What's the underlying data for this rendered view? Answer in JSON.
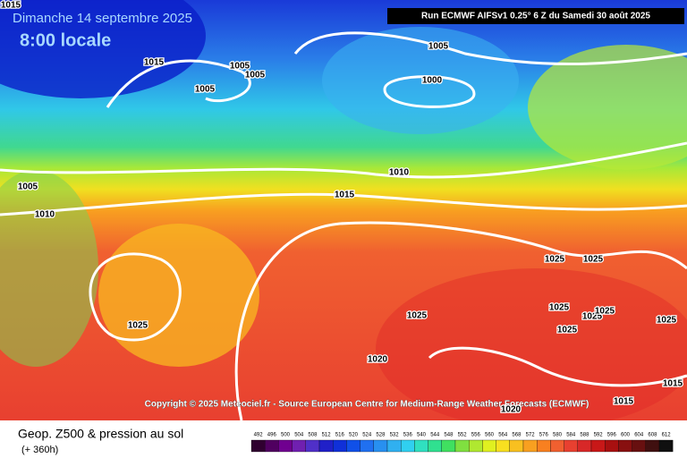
{
  "header": {
    "date": "Dimanche 14 septembre 2025",
    "time": "8:00 locale",
    "run": "Run ECMWF AIFSv1 0.25° 6 Z du Samedi 30 août 2025"
  },
  "footer": {
    "copyright": "Copyright © 2025 Meteociel.fr - Source European Centre for Medium-Range Weather Forecasts (ECMWF)",
    "product": "Geop. Z500 & pression au sol",
    "lead_time": "(+ 360h)"
  },
  "isobar_labels": [
    "1015",
    "1015",
    "1005",
    "1005",
    "1005",
    "1005",
    "1000",
    "1010",
    "1015",
    "1005",
    "1010",
    "1025",
    "1025",
    "1025",
    "1025",
    "1025",
    "1025",
    "1025",
    "1025",
    "1025",
    "1020",
    "1015",
    "1015",
    "1020"
  ],
  "scale": {
    "labels": [
      "492",
      "496",
      "500",
      "504",
      "508",
      "512",
      "516",
      "520",
      "524",
      "528",
      "532",
      "536",
      "540",
      "544",
      "548",
      "552",
      "556",
      "560",
      "564",
      "568",
      "572",
      "576",
      "580",
      "584",
      "588",
      "592",
      "596",
      "600",
      "604",
      "608",
      "612"
    ],
    "colors": [
      "#300030",
      "#500060",
      "#700090",
      "#7020b0",
      "#5030c8",
      "#2020c8",
      "#1030d8",
      "#1050e8",
      "#2070f0",
      "#2890f0",
      "#30b0f0",
      "#30d0f0",
      "#30e0c0",
      "#30e090",
      "#40e060",
      "#80e040",
      "#b0e830",
      "#e0f020",
      "#f8e020",
      "#f8c020",
      "#f8a020",
      "#f88020",
      "#f06030",
      "#e84030",
      "#d82828",
      "#c81818",
      "#a81010",
      "#881010",
      "#681010",
      "#401010",
      "#101010"
    ]
  }
}
